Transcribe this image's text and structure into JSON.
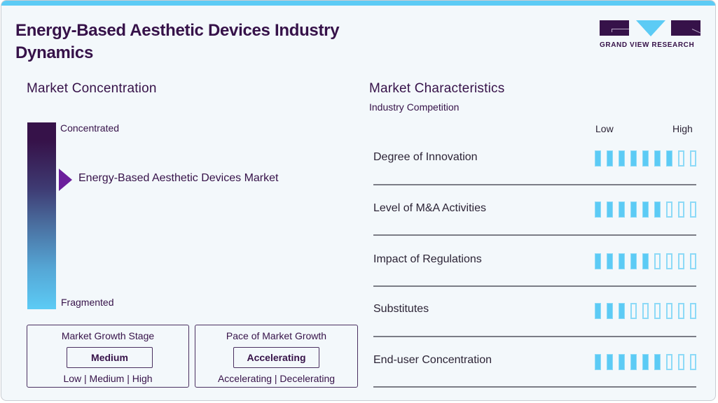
{
  "header": {
    "title": "Energy-Based Aesthetic Devices Industry Dynamics",
    "logo_text": "GRAND VIEW RESEARCH"
  },
  "colors": {
    "accent_blue": "#5ccbf5",
    "brand_purple": "#361249",
    "marker_purple": "#6c1e9c"
  },
  "concentration": {
    "title": "Market Concentration",
    "top_label": "Concentrated",
    "bottom_label": "Fragmented",
    "market_label": "Energy-Based Aesthetic Devices Market"
  },
  "growth_stage": {
    "title": "Market Growth Stage",
    "value": "Medium",
    "options": "Low  |  Medium  |  High"
  },
  "growth_pace": {
    "title": "Pace of Market Growth",
    "value": "Accelerating",
    "options": "Accelerating  |  Decelerating"
  },
  "characteristics": {
    "title": "Market Characteristics",
    "subtitle": "Industry Competition",
    "scale_low": "Low",
    "scale_high": "High",
    "max_score": 9,
    "rows": [
      {
        "label": "Degree of Innovation",
        "score": 7
      },
      {
        "label": "Level of M&A Activities",
        "score": 6
      },
      {
        "label": "Impact of Regulations",
        "score": 5
      },
      {
        "label": "Substitutes",
        "score": 3
      },
      {
        "label": "End-user Concentration",
        "score": 6
      }
    ]
  }
}
